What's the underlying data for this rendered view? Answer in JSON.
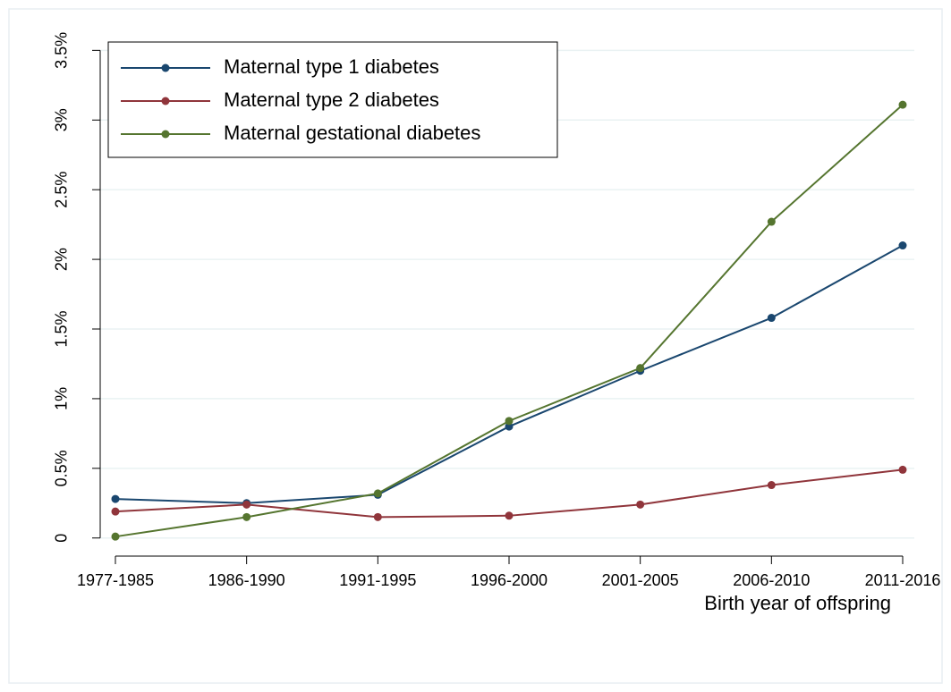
{
  "chart_data": {
    "type": "line",
    "x_label": "Birth year of offspring",
    "categories": [
      "1977-1985",
      "1986-1990",
      "1991-1995",
      "1996-2000",
      "2001-2005",
      "2006-2010",
      "2011-2016"
    ],
    "series": [
      {
        "name": "Maternal type 1 diabetes",
        "color": "#1a476f",
        "values": [
          0.28,
          0.25,
          0.31,
          0.8,
          1.2,
          1.58,
          2.1
        ]
      },
      {
        "name": "Maternal type 2 diabetes",
        "color": "#90353b",
        "values": [
          0.19,
          0.24,
          0.15,
          0.16,
          0.24,
          0.38,
          0.49
        ]
      },
      {
        "name": "Maternal gestational diabetes",
        "color": "#55752f",
        "values": [
          0.01,
          0.15,
          0.32,
          0.84,
          1.22,
          2.27,
          3.11
        ]
      }
    ],
    "ylim": [
      -0.13,
      3.56
    ],
    "yticks": [
      0,
      {
        "value": 0.5,
        "label": "0.5%"
      },
      {
        "value": 1,
        "label": "1%"
      },
      {
        "value": 1.5,
        "label": "1.5%"
      },
      {
        "value": 2,
        "label": "2%"
      },
      {
        "value": 2.5,
        "label": "2.5%"
      },
      {
        "value": 3,
        "label": "3%"
      },
      {
        "value": 3.5,
        "label": "3.5%"
      }
    ],
    "grid": true,
    "legend_position": "top-left"
  }
}
